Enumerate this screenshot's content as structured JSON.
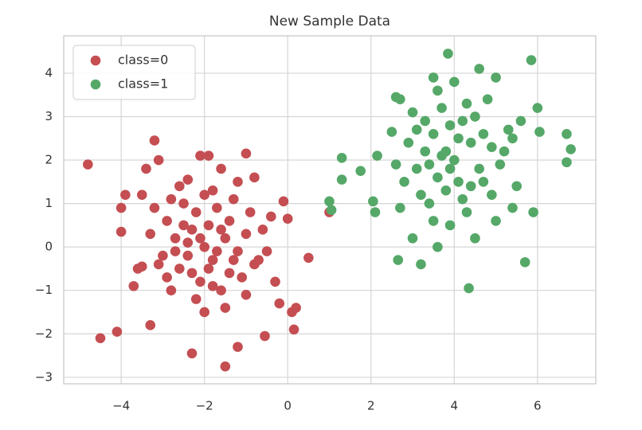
{
  "chart_data": {
    "type": "scatter",
    "title": "New Sample Data",
    "xlim": [
      -5.38,
      7.4
    ],
    "ylim": [
      -3.15,
      4.86
    ],
    "xticks": [
      {
        "value": -4,
        "label": "−4"
      },
      {
        "value": -2,
        "label": "−2"
      },
      0,
      2,
      4,
      6
    ],
    "yticks": [
      {
        "value": -3,
        "label": "−3"
      },
      {
        "value": -2,
        "label": "−2"
      },
      {
        "value": -1,
        "label": "−1"
      },
      0,
      1,
      2,
      3,
      4
    ],
    "grid": true,
    "legend": "upper left",
    "series": [
      {
        "name": "class=0",
        "color": "#c44e52",
        "x": [
          -4.8,
          -4.5,
          -4.1,
          -3.3,
          -2.3,
          -1.5,
          -1.2,
          -0.55,
          0.15,
          0.2,
          0.1,
          -0.2,
          0.5,
          1.0,
          -0.1,
          0.0,
          -0.4,
          -1.0,
          -1.9,
          -2.1,
          -3.2,
          -3.1,
          -3.4,
          -4.0,
          -3.9,
          -4.0,
          -3.6,
          -3.5,
          -3.7,
          -0.8,
          -0.3,
          -0.7,
          -1.6,
          -2.4,
          -2.0,
          -1.8,
          -2.3,
          -1.5,
          -2.6,
          -1.2,
          -2.9,
          -1.7,
          -2.1,
          -1.4,
          -2.5,
          -1.9,
          -3.0,
          -1.0,
          -2.2,
          -1.6,
          -2.7,
          -1.3,
          -2.4,
          -1.1,
          -3.2,
          -0.9,
          -2.8,
          -1.8,
          -2.0,
          -1.5,
          -3.3,
          -0.6,
          -2.6,
          -1.2,
          -2.2,
          -1.7,
          -2.9,
          -0.8,
          -3.5,
          -2.3,
          -1.4,
          -2.0,
          -1.0,
          -3.1,
          -2.5,
          -1.9,
          -2.8,
          -1.6,
          -0.5,
          -2.1,
          -1.3,
          -2.7,
          -1.8,
          -2.4
        ],
        "y": [
          1.9,
          -2.1,
          -1.95,
          -1.8,
          -2.45,
          -2.75,
          -2.3,
          -2.05,
          -1.9,
          -1.4,
          -1.5,
          -1.3,
          -0.25,
          0.8,
          1.05,
          0.65,
          0.7,
          2.15,
          2.1,
          2.1,
          2.45,
          2.0,
          1.8,
          0.35,
          1.2,
          0.9,
          -0.5,
          -0.45,
          -0.9,
          1.6,
          -0.8,
          -0.3,
          1.8,
          1.55,
          0.0,
          -0.3,
          0.4,
          0.2,
          -0.5,
          -0.1,
          0.6,
          0.9,
          -0.8,
          -0.6,
          1.0,
          0.5,
          -0.2,
          0.3,
          -1.2,
          -1.0,
          0.2,
          1.1,
          -0.2,
          -0.7,
          0.9,
          0.8,
          -1.0,
          1.3,
          -1.5,
          -1.4,
          0.3,
          0.4,
          1.4,
          1.5,
          0.8,
          -0.1,
          -0.7,
          -0.4,
          1.2,
          -0.6,
          0.6,
          1.2,
          -1.1,
          -0.4,
          0.5,
          -0.5,
          1.1,
          0.4,
          -0.1,
          0.2,
          -0.3,
          -0.1,
          -0.9,
          0.1
        ]
      },
      {
        "name": "class=1",
        "color": "#55a868",
        "x": [
          1.05,
          1.0,
          1.3,
          1.3,
          1.75,
          2.05,
          2.1,
          2.15,
          2.6,
          2.7,
          2.65,
          3.2,
          4.35,
          5.7,
          5.85,
          3.85,
          6.0,
          6.7,
          6.8,
          6.7,
          5.9,
          5.4,
          2.5,
          3.5,
          4.6,
          5.0,
          6.05,
          4.0,
          3.6,
          4.4,
          3.3,
          4.7,
          3.9,
          4.2,
          3.5,
          4.9,
          3.1,
          4.5,
          3.8,
          4.1,
          3.4,
          5.1,
          3.7,
          4.3,
          2.9,
          5.3,
          3.2,
          4.6,
          3.9,
          4.8,
          3.0,
          5.5,
          3.6,
          4.2,
          2.8,
          5.0,
          3.5,
          4.4,
          3.8,
          5.2,
          3.3,
          4.0,
          2.7,
          4.7,
          3.9,
          5.6,
          3.1,
          4.3,
          3.6,
          4.9,
          3.4,
          4.1,
          5.4,
          3.7,
          2.6,
          4.5,
          3.0
        ],
        "y": [
          0.85,
          1.05,
          2.05,
          1.55,
          1.75,
          1.05,
          0.8,
          2.1,
          3.45,
          3.4,
          -0.3,
          -0.4,
          -0.95,
          -0.35,
          4.3,
          4.45,
          3.2,
          2.6,
          2.25,
          1.95,
          0.8,
          0.9,
          2.65,
          3.9,
          4.1,
          3.9,
          2.65,
          2.0,
          1.6,
          2.4,
          2.2,
          1.5,
          2.8,
          1.1,
          2.6,
          2.3,
          1.8,
          3.0,
          1.3,
          2.5,
          1.0,
          1.9,
          3.2,
          0.8,
          2.4,
          2.7,
          1.2,
          1.8,
          0.5,
          3.4,
          0.2,
          1.4,
          3.6,
          2.9,
          1.5,
          0.6,
          0.6,
          1.4,
          2.2,
          2.2,
          2.9,
          3.8,
          0.9,
          2.6,
          1.8,
          2.9,
          2.7,
          3.3,
          0.0,
          1.2,
          1.9,
          1.5,
          2.5,
          2.1,
          1.9,
          0.2,
          3.1
        ]
      }
    ]
  }
}
